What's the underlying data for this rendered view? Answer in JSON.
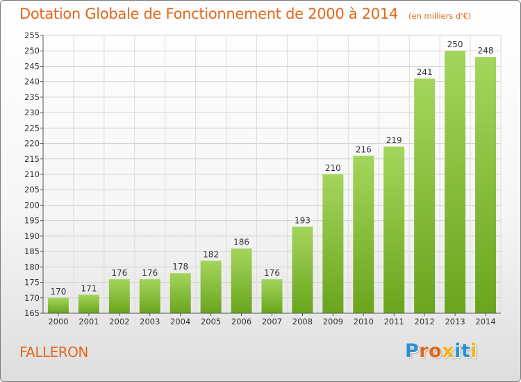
{
  "header": {
    "title": "Dotation Globale de Fonctionnement de 2000 à 2014",
    "unit": "(en milliers d'€)"
  },
  "footer": {
    "commune": "FALLERON",
    "logo": "Proxiti"
  },
  "colors": {
    "title": "#e2671e",
    "bar_top": "#a4d55c",
    "bar_bottom": "#6aa51d",
    "logo_letters": [
      "#2c8fd0",
      "#e2671e",
      "#e2671e",
      "#f2b41d",
      "#2c8fd0",
      "#2c8fd0",
      "#f2b41d"
    ]
  },
  "chart_data": {
    "type": "bar",
    "categories": [
      "2000",
      "2001",
      "2002",
      "2003",
      "2004",
      "2005",
      "2006",
      "2007",
      "2008",
      "2009",
      "2010",
      "2011",
      "2012",
      "2013",
      "2014"
    ],
    "values": [
      170,
      171,
      176,
      176,
      178,
      182,
      186,
      176,
      193,
      210,
      216,
      219,
      241,
      250,
      248
    ],
    "ylim": [
      165,
      255
    ],
    "yticks": [
      165,
      170,
      175,
      180,
      185,
      190,
      195,
      200,
      205,
      210,
      215,
      220,
      225,
      230,
      235,
      240,
      245,
      250,
      255
    ],
    "grid": true,
    "xlabel": "",
    "ylabel": ""
  }
}
